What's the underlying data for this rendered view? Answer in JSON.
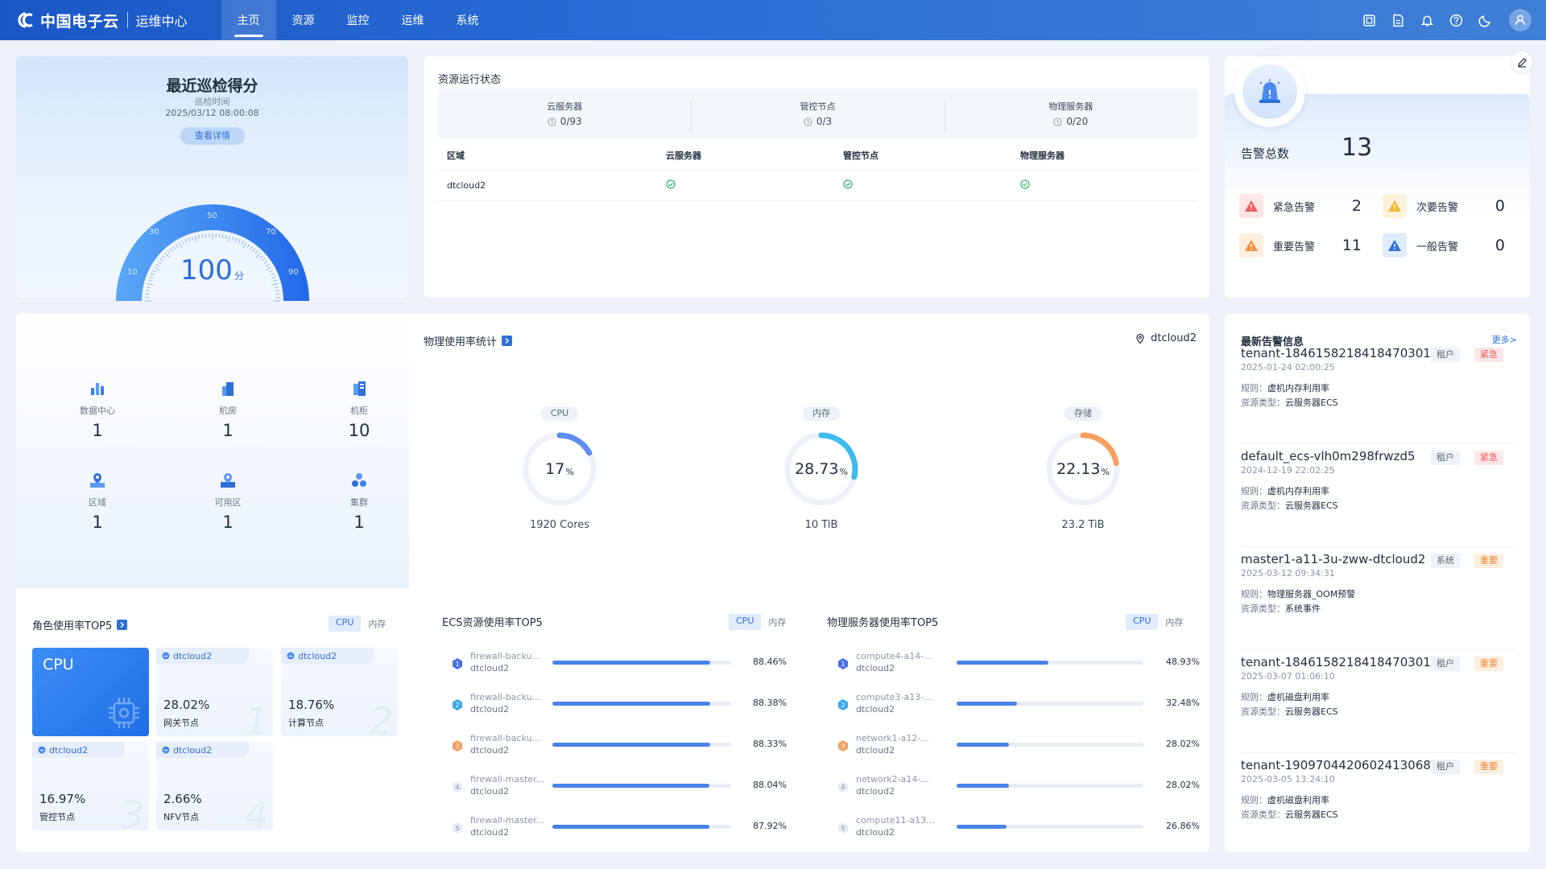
{
  "header": {
    "brand": "中国电子云",
    "subtitle": "运维中心",
    "nav": [
      {
        "label": "主页",
        "active": true
      },
      {
        "label": "资源",
        "active": false
      },
      {
        "label": "监控",
        "active": false
      },
      {
        "label": "运维",
        "active": false
      },
      {
        "label": "系统",
        "active": false
      }
    ],
    "tools": [
      "screen-icon",
      "document-icon",
      "bell-icon",
      "help-icon",
      "moon-icon",
      "user-icon"
    ]
  },
  "score": {
    "title": "最近巡检得分",
    "time_label": "巡检时间",
    "time": "2025/03/12 08:00:08",
    "detail_button": "查看详情",
    "value": "100",
    "unit": "分",
    "gauge_ticks": [
      "10",
      "30",
      "50",
      "70",
      "90"
    ]
  },
  "resource_status": {
    "title": "资源运行状态",
    "summary": [
      {
        "label": "云服务器",
        "value": "0/93"
      },
      {
        "label": "管控节点",
        "value": "0/3"
      },
      {
        "label": "物理服务器",
        "value": "0/20"
      }
    ],
    "table": {
      "headers": [
        "区域",
        "云服务器",
        "管控节点",
        "物理服务器"
      ],
      "rows": [
        {
          "region": "dtcloud2",
          "ecs": "ok",
          "control": "ok",
          "physical": "ok"
        }
      ]
    }
  },
  "alarms": {
    "total_label": "告警总数",
    "total": "13",
    "levels": [
      {
        "label": "紧急告警",
        "value": "2",
        "color": "#f05a5a"
      },
      {
        "label": "次要告警",
        "value": "0",
        "color": "#f5b731"
      },
      {
        "label": "重要告警",
        "value": "11",
        "color": "#f5913a"
      },
      {
        "label": "一般告警",
        "value": "0",
        "color": "#2f6fd8"
      }
    ]
  },
  "counts": [
    {
      "label": "数据中心",
      "value": "1",
      "icon": "datacenter-icon"
    },
    {
      "label": "机房",
      "value": "1",
      "icon": "server-room-icon"
    },
    {
      "label": "机柜",
      "value": "10",
      "icon": "cabinet-icon"
    },
    {
      "label": "区域",
      "value": "1",
      "icon": "region-icon"
    },
    {
      "label": "可用区",
      "value": "1",
      "icon": "zone-icon"
    },
    {
      "label": "集群",
      "value": "1",
      "icon": "cluster-icon"
    }
  ],
  "physical_usage": {
    "title": "物理使用率统计",
    "location": "dtcloud2",
    "rings": [
      {
        "tag": "CPU",
        "value": "17",
        "pct": 17,
        "unit": "%",
        "caption": "1920 Cores",
        "color": "#5b8ef0"
      },
      {
        "tag": "内存",
        "value": "28.73",
        "pct": 28.73,
        "unit": "%",
        "caption": "10 TiB",
        "color": "#3dbbf0"
      },
      {
        "tag": "存储",
        "value": "22.13",
        "pct": 22.13,
        "unit": "%",
        "caption": "23.2 TiB",
        "color": "#f5a060"
      }
    ]
  },
  "role_top5": {
    "title": "角色使用率TOP5",
    "tabs": [
      "CPU",
      "内存"
    ],
    "main_label": "CPU",
    "tiles": [
      {
        "region": "dtcloud2",
        "pct": "28.02%",
        "name": "网关节点",
        "rank": "1"
      },
      {
        "region": "dtcloud2",
        "pct": "18.76%",
        "name": "计算节点",
        "rank": "2"
      },
      {
        "region": "dtcloud2",
        "pct": "16.97%",
        "name": "管控节点",
        "rank": "3"
      },
      {
        "region": "dtcloud2",
        "pct": "2.66%",
        "name": "NFV节点",
        "rank": "4"
      }
    ]
  },
  "ecs_top5": {
    "title": "ECS资源使用率TOP5",
    "tabs": [
      "CPU",
      "内存"
    ],
    "rows": [
      {
        "rank": "1",
        "name": "firewall-backu...",
        "region": "dtcloud2",
        "value": "88.46%",
        "pct": 88.46
      },
      {
        "rank": "2",
        "name": "firewall-backu...",
        "region": "dtcloud2",
        "value": "88.38%",
        "pct": 88.38
      },
      {
        "rank": "3",
        "name": "firewall-backu...",
        "region": "dtcloud2",
        "value": "88.33%",
        "pct": 88.33
      },
      {
        "rank": "4",
        "name": "firewall-master...",
        "region": "dtcloud2",
        "value": "88.04%",
        "pct": 88.04
      },
      {
        "rank": "5",
        "name": "firewall-master...",
        "region": "dtcloud2",
        "value": "87.92%",
        "pct": 87.92
      }
    ]
  },
  "phys_top5": {
    "title": "物理服务器使用率TOP5",
    "tabs": [
      "CPU",
      "内存"
    ],
    "rows": [
      {
        "rank": "1",
        "name": "compute4-a14-...",
        "region": "dtcloud2",
        "value": "48.93%",
        "pct": 48.93
      },
      {
        "rank": "2",
        "name": "compute3-a13-...",
        "region": "dtcloud2",
        "value": "32.48%",
        "pct": 32.48
      },
      {
        "rank": "3",
        "name": "network1-a12-...",
        "region": "dtcloud2",
        "value": "28.02%",
        "pct": 28.02
      },
      {
        "rank": "4",
        "name": "network2-a14-...",
        "region": "dtcloud2",
        "value": "28.02%",
        "pct": 28.02
      },
      {
        "rank": "5",
        "name": "compute11-a13...",
        "region": "dtcloud2",
        "value": "26.86%",
        "pct": 26.86
      }
    ]
  },
  "latest_alarms": {
    "title": "最新告警信息",
    "more": "更多>",
    "rule_key": "规则：",
    "type_key": "资源类型：",
    "items": [
      {
        "name": "tenant-1846158218418470301...",
        "kind": "租户",
        "level": "紧急",
        "level_class": "urgent",
        "time": "2025-01-24 02:00:25",
        "rule": "虚机内存利用率",
        "type": "云服务器ECS"
      },
      {
        "name": "default_ecs-vlh0m298frwzd5",
        "kind": "租户",
        "level": "紧急",
        "level_class": "urgent",
        "time": "2024-12-19 22:02:25",
        "rule": "虚机内存利用率",
        "type": "云服务器ECS"
      },
      {
        "name": "master1-a11-3u-zww-dtcloud2",
        "kind": "系统",
        "level": "重要",
        "level_class": "major",
        "time": "2025-03-12 09:34:31",
        "rule": "物理服务器_OOM预警",
        "type": "系统事件"
      },
      {
        "name": "tenant-1846158218418470301...",
        "kind": "租户",
        "level": "重要",
        "level_class": "major",
        "time": "2025-03-07 01:06:10",
        "rule": "虚机磁盘利用率",
        "type": "云服务器ECS"
      },
      {
        "name": "tenant-1909704420602413068...",
        "kind": "租户",
        "level": "重要",
        "level_class": "major",
        "time": "2025-03-05 13:24:10",
        "rule": "虚机磁盘利用率",
        "type": "云服务器ECS"
      }
    ]
  }
}
